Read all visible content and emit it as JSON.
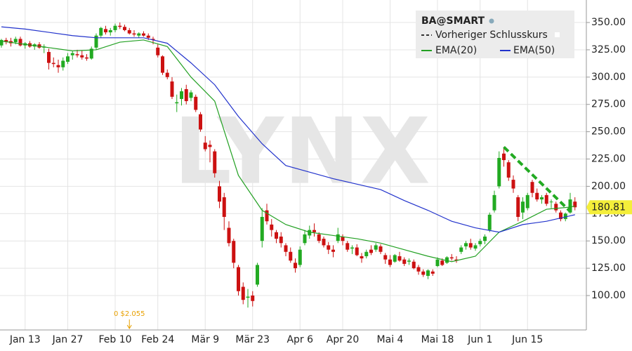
{
  "chart_data": {
    "type": "candlestick",
    "legend_title": "BA@SMART",
    "previous_close_label": "Vorheriger Schlusskurs",
    "watermark": "LYNX",
    "up_color": "#22aa22",
    "down_color": "#cc1111",
    "grid": true,
    "x": [
      "Jan 6",
      "Jan 7",
      "Jan 8",
      "Jan 9",
      "Jan 10",
      "Jan 13",
      "Jan 14",
      "Jan 15",
      "Jan 16",
      "Jan 17",
      "Jan 21",
      "Jan 22",
      "Jan 23",
      "Jan 24",
      "Jan 27",
      "Jan 28",
      "Jan 29",
      "Jan 30",
      "Jan 31",
      "Feb 3",
      "Feb 4",
      "Feb 5",
      "Feb 6",
      "Feb 7",
      "Feb 10",
      "Feb 11",
      "Feb 12",
      "Feb 13",
      "Feb 14",
      "Feb 18",
      "Feb 19",
      "Feb 20",
      "Feb 21",
      "Feb 24",
      "Feb 25",
      "Feb 26",
      "Feb 27",
      "Feb 28",
      "Mär 2",
      "Mär 3",
      "Mär 4",
      "Mär 5",
      "Mär 6",
      "Mär 9",
      "Mär 10",
      "Mär 11",
      "Mär 12",
      "Mär 13",
      "Mär 16",
      "Mär 17",
      "Mär 18",
      "Mär 19",
      "Mär 20",
      "Mär 23",
      "Mär 24",
      "Mär 25",
      "Mär 26",
      "Mär 27",
      "Mär 30",
      "Mär 31",
      "Apr 1",
      "Apr 2",
      "Apr 3",
      "Apr 6",
      "Apr 7",
      "Apr 8",
      "Apr 9",
      "Apr 13",
      "Apr 14",
      "Apr 15",
      "Apr 16",
      "Apr 17",
      "Apr 20",
      "Apr 21",
      "Apr 22",
      "Apr 23",
      "Apr 24",
      "Apr 27",
      "Apr 28",
      "Apr 29",
      "Apr 30",
      "Mai 1",
      "Mai 4",
      "Mai 5",
      "Mai 6",
      "Mai 7",
      "Mai 8",
      "Mai 11",
      "Mai 12",
      "Mai 13",
      "Mai 14",
      "Mai 15",
      "Mai 18",
      "Mai 19",
      "Mai 20",
      "Mai 21",
      "Mai 22",
      "Mai 26",
      "Mai 27",
      "Mai 28",
      "Mai 29",
      "Jun 1",
      "Jun 2",
      "Jun 3",
      "Jun 4",
      "Jun 5",
      "Jun 8",
      "Jun 9",
      "Jun 10",
      "Jun 11",
      "Jun 12",
      "Jun 15",
      "Jun 16",
      "Jun 17",
      "Jun 18",
      "Jun 19",
      "Jun 22",
      "Jun 23",
      "Jun 24",
      "Jun 25",
      "Jun 26",
      "Jun 29"
    ],
    "ohlc": [
      [
        329,
        335,
        327,
        334
      ],
      [
        334,
        336,
        330,
        332
      ],
      [
        333,
        336,
        328,
        331
      ],
      [
        332,
        337,
        330,
        335
      ],
      [
        335,
        337,
        328,
        329
      ],
      [
        329,
        332,
        326,
        331
      ],
      [
        331,
        333,
        327,
        328
      ],
      [
        328,
        331,
        325,
        330
      ],
      [
        330,
        332,
        326,
        327
      ],
      [
        327,
        330,
        322,
        328
      ],
      [
        323,
        326,
        307,
        313
      ],
      [
        313,
        318,
        309,
        312
      ],
      [
        311,
        316,
        304,
        309
      ],
      [
        309,
        318,
        306,
        315
      ],
      [
        314,
        322,
        312,
        319
      ],
      [
        320,
        324,
        316,
        322
      ],
      [
        321,
        325,
        318,
        320
      ],
      [
        320,
        324,
        316,
        318
      ],
      [
        318,
        321,
        315,
        317
      ],
      [
        317,
        328,
        316,
        326
      ],
      [
        327,
        340,
        325,
        338
      ],
      [
        338,
        346,
        336,
        345
      ],
      [
        344,
        347,
        339,
        341
      ],
      [
        341,
        345,
        338,
        343
      ],
      [
        343,
        349,
        341,
        347
      ],
      [
        347,
        350,
        344,
        346
      ],
      [
        346,
        348,
        342,
        343
      ],
      [
        343,
        345,
        339,
        340
      ],
      [
        340,
        343,
        337,
        339
      ],
      [
        338,
        341,
        336,
        340
      ],
      [
        340,
        342,
        337,
        338
      ],
      [
        338,
        340,
        334,
        336
      ],
      [
        335,
        337,
        330,
        334
      ],
      [
        327,
        330,
        318,
        320
      ],
      [
        319,
        320,
        302,
        304
      ],
      [
        304,
        307,
        298,
        300
      ],
      [
        296,
        300,
        280,
        282
      ],
      [
        276,
        284,
        268,
        277
      ],
      [
        280,
        290,
        274,
        287
      ],
      [
        289,
        293,
        275,
        278
      ],
      [
        281,
        288,
        278,
        286
      ],
      [
        282,
        284,
        268,
        270
      ],
      [
        266,
        268,
        250,
        252
      ],
      [
        240,
        246,
        232,
        234
      ],
      [
        238,
        242,
        222,
        236
      ],
      [
        232,
        234,
        208,
        212
      ],
      [
        200,
        205,
        180,
        186
      ],
      [
        190,
        194,
        160,
        172
      ],
      [
        162,
        168,
        145,
        148
      ],
      [
        150,
        152,
        125,
        130
      ],
      [
        126,
        128,
        100,
        104
      ],
      [
        108,
        112,
        92,
        96
      ],
      [
        98,
        106,
        89,
        99
      ],
      [
        100,
        104,
        90,
        95
      ],
      [
        110,
        130,
        108,
        128
      ],
      [
        150,
        180,
        144,
        172
      ],
      [
        178,
        184,
        165,
        168
      ],
      [
        165,
        170,
        154,
        160
      ],
      [
        158,
        160,
        148,
        152
      ],
      [
        154,
        158,
        144,
        148
      ],
      [
        146,
        148,
        136,
        140
      ],
      [
        140,
        144,
        130,
        132
      ],
      [
        130,
        134,
        121,
        125
      ],
      [
        128,
        145,
        126,
        142
      ],
      [
        148,
        160,
        146,
        156
      ],
      [
        155,
        164,
        152,
        160
      ],
      [
        160,
        166,
        154,
        158
      ],
      [
        156,
        158,
        148,
        150
      ],
      [
        152,
        154,
        144,
        146
      ],
      [
        146,
        149,
        138,
        142
      ],
      [
        142,
        146,
        135,
        140
      ],
      [
        150,
        162,
        148,
        156
      ],
      [
        154,
        156,
        146,
        150
      ],
      [
        148,
        150,
        140,
        142
      ],
      [
        143,
        146,
        138,
        144
      ],
      [
        144,
        147,
        136,
        137
      ],
      [
        136,
        139,
        130,
        134
      ],
      [
        136,
        142,
        134,
        140
      ],
      [
        142,
        146,
        137,
        139
      ],
      [
        142,
        148,
        140,
        146
      ],
      [
        145,
        147,
        138,
        140
      ],
      [
        137,
        139,
        129,
        133
      ],
      [
        133,
        137,
        126,
        128
      ],
      [
        131,
        138,
        130,
        137
      ],
      [
        136,
        140,
        131,
        132
      ],
      [
        133,
        135,
        127,
        129
      ],
      [
        131,
        134,
        128,
        132
      ],
      [
        131,
        133,
        124,
        125
      ],
      [
        126,
        128,
        119,
        122
      ],
      [
        122,
        124,
        117,
        119
      ],
      [
        118,
        124,
        115,
        123
      ],
      [
        122,
        124,
        118,
        120
      ],
      [
        127,
        135,
        126,
        133
      ],
      [
        132,
        134,
        127,
        128
      ],
      [
        130,
        136,
        129,
        135
      ],
      [
        135,
        138,
        132,
        134
      ],
      [
        133,
        136,
        130,
        132
      ],
      [
        140,
        146,
        138,
        144
      ],
      [
        145,
        150,
        142,
        148
      ],
      [
        148,
        152,
        142,
        144
      ],
      [
        143,
        148,
        141,
        146
      ],
      [
        147,
        152,
        145,
        150
      ],
      [
        150,
        156,
        147,
        154
      ],
      [
        160,
        176,
        158,
        174
      ],
      [
        178,
        196,
        176,
        192
      ],
      [
        200,
        232,
        198,
        226
      ],
      [
        230,
        236,
        218,
        224
      ],
      [
        222,
        224,
        205,
        208
      ],
      [
        206,
        210,
        194,
        198
      ],
      [
        190,
        192,
        168,
        172
      ],
      [
        176,
        190,
        170,
        186
      ],
      [
        180,
        194,
        178,
        192
      ],
      [
        204,
        206,
        190,
        194
      ],
      [
        194,
        198,
        186,
        188
      ],
      [
        188,
        192,
        184,
        190
      ],
      [
        192,
        194,
        182,
        184
      ],
      [
        186,
        188,
        180,
        186
      ],
      [
        184,
        186,
        176,
        178
      ],
      [
        176,
        178,
        168,
        170
      ],
      [
        170,
        176,
        168,
        175
      ],
      [
        176,
        194,
        175,
        188
      ],
      [
        186,
        190,
        178,
        180.81
      ]
    ],
    "indicators": [
      {
        "name": "EMA(20)",
        "color": "#22a022",
        "x": [
          "Jan 6",
          "Jan 13",
          "Jan 21",
          "Jan 28",
          "Feb 4",
          "Feb 11",
          "Feb 19",
          "Feb 26",
          "Mär 4",
          "Mär 11",
          "Mär 18",
          "Mär 25",
          "Apr 1",
          "Apr 8",
          "Apr 16",
          "Apr 23",
          "Apr 30",
          "Mai 7",
          "Mai 14",
          "Mai 21",
          "Mai 29",
          "Jun 5",
          "Jun 12",
          "Jun 19",
          "Jun 26",
          "Jun 29"
        ],
        "values": [
          333,
          330,
          327,
          324,
          325,
          332,
          334,
          328,
          300,
          278,
          210,
          178,
          165,
          158,
          155,
          152,
          148,
          142,
          136,
          131,
          136,
          158,
          168,
          179,
          181,
          182
        ]
      },
      {
        "name": "EMA(50)",
        "color": "#2233cc",
        "x": [
          "Jan 6",
          "Jan 13",
          "Jan 21",
          "Jan 28",
          "Feb 4",
          "Feb 11",
          "Feb 19",
          "Feb 26",
          "Mär 4",
          "Mär 11",
          "Mär 18",
          "Mär 25",
          "Apr 1",
          "Apr 8",
          "Apr 16",
          "Apr 23",
          "Apr 30",
          "Mai 7",
          "Mai 14",
          "Mai 21",
          "Mai 29",
          "Jun 5",
          "Jun 12",
          "Jun 19",
          "Jun 26",
          "Jun 29"
        ],
        "values": [
          346,
          344,
          341,
          338,
          336,
          336,
          336,
          331,
          313,
          293,
          264,
          239,
          219,
          213,
          207,
          202,
          197,
          187,
          178,
          168,
          162,
          158,
          165,
          168,
          173,
          174
        ]
      }
    ],
    "trendline": {
      "color": "#22aa22",
      "x": [
        "Jun 8",
        "Jun 26"
      ],
      "values": [
        236,
        177
      ]
    },
    "annotation": {
      "text": "0 $2.055",
      "x": "Feb 13"
    },
    "ylim": [
      68.5,
      370.6
    ],
    "yticks": [
      {
        "value": 100,
        "label": "100.00"
      },
      {
        "value": 125,
        "label": "125.00"
      },
      {
        "value": 150,
        "label": "150.00"
      },
      {
        "value": 175,
        "label": "175.00"
      },
      {
        "value": 200,
        "label": "200.00"
      },
      {
        "value": 225,
        "label": "225.00"
      },
      {
        "value": 250,
        "label": "250.00"
      },
      {
        "value": 275,
        "label": "275.00"
      },
      {
        "value": 300,
        "label": "300.00"
      },
      {
        "value": 325,
        "label": "325.00"
      },
      {
        "value": 350,
        "label": "350.00"
      }
    ],
    "xticks": [
      "Jan 13",
      "Jan 27",
      "Feb 10",
      "Feb 24",
      "Mär 9",
      "Mär 23",
      "Apr 6",
      "Apr 20",
      "Mai 4",
      "Mai 18",
      "Jun 1",
      "Jun 15"
    ]
  }
}
